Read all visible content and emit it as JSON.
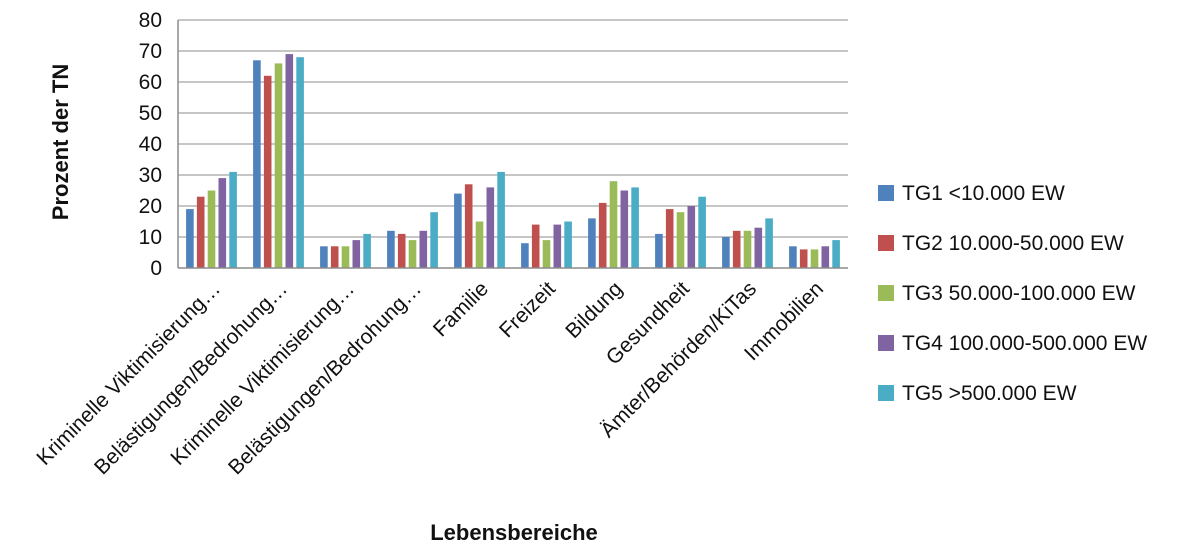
{
  "chart_data": {
    "type": "bar",
    "title": "",
    "xlabel": "Lebensbereiche",
    "ylabel": "Prozent der TN",
    "ylim": [
      0,
      80
    ],
    "yticks": [
      0,
      10,
      20,
      30,
      40,
      50,
      60,
      70,
      80
    ],
    "grid": true,
    "legend_position": "right",
    "categories": [
      "Kriminelle Viktimisierung…",
      "Belästigungen/Bedrohung…",
      "Kriminelle Viktimisierung…",
      "Belästigungen/Bedrohung…",
      "Familie",
      "Freizeit",
      "Bildung",
      "Gesundheit",
      "Ämter/Behörden/KiTas",
      "Immobilien"
    ],
    "series": [
      {
        "name": "TG1 <10.000 EW",
        "color": "#4F81BD",
        "values": [
          19,
          67,
          7,
          12,
          24,
          8,
          16,
          11,
          10,
          7
        ]
      },
      {
        "name": "TG2 10.000-50.000 EW",
        "color": "#C0504D",
        "values": [
          23,
          62,
          7,
          11,
          27,
          14,
          21,
          19,
          12,
          6
        ]
      },
      {
        "name": "TG3 50.000-100.000 EW",
        "color": "#9BBB59",
        "values": [
          25,
          66,
          7,
          9,
          15,
          9,
          28,
          18,
          12,
          6
        ]
      },
      {
        "name": "TG4 100.000-500.000 EW",
        "color": "#8064A2",
        "values": [
          29,
          69,
          9,
          12,
          26,
          14,
          25,
          20,
          13,
          7
        ]
      },
      {
        "name": "TG5 >500.000 EW",
        "color": "#4BACC6",
        "values": [
          31,
          68,
          11,
          18,
          31,
          15,
          26,
          23,
          16,
          9
        ]
      }
    ]
  }
}
